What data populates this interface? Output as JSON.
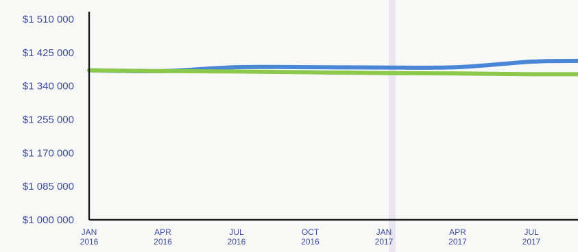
{
  "chart_data": {
    "type": "line",
    "title": "",
    "xlabel": "",
    "ylabel": "",
    "ylim": [
      1000000,
      1510000
    ],
    "y_ticks": [
      {
        "value": 1510000,
        "label": "$1 510 000"
      },
      {
        "value": 1425000,
        "label": "$1 425 000"
      },
      {
        "value": 1340000,
        "label": "$1 340 000"
      },
      {
        "value": 1255000,
        "label": "$1 255 000"
      },
      {
        "value": 1170000,
        "label": "$1 170 000"
      },
      {
        "value": 1085000,
        "label": "$1 085 000"
      },
      {
        "value": 1000000,
        "label": "$1 000 000"
      }
    ],
    "x_ticks": [
      {
        "month": "JAN",
        "year": "2016"
      },
      {
        "month": "APR",
        "year": "2016"
      },
      {
        "month": "JUL",
        "year": "2016"
      },
      {
        "month": "OCT",
        "year": "2016"
      },
      {
        "month": "JAN",
        "year": "2017"
      },
      {
        "month": "APR",
        "year": "2017"
      },
      {
        "month": "JUL",
        "year": "2017"
      }
    ],
    "x": [
      "Jan 2016",
      "Apr 2016",
      "Jul 2016",
      "Oct 2016",
      "Jan 2017",
      "Apr 2017",
      "Jul 2017",
      "Sep 2017"
    ],
    "series": [
      {
        "color": "#4a86d8",
        "values": [
          1380000,
          1378000,
          1388000,
          1388000,
          1387000,
          1388000,
          1402000,
          1404000
        ]
      },
      {
        "color": "#8cc84b",
        "values": [
          1380000,
          1378000,
          1377000,
          1375000,
          1373000,
          1372000,
          1370000,
          1370000
        ]
      }
    ],
    "grid": false,
    "legend": "none"
  }
}
